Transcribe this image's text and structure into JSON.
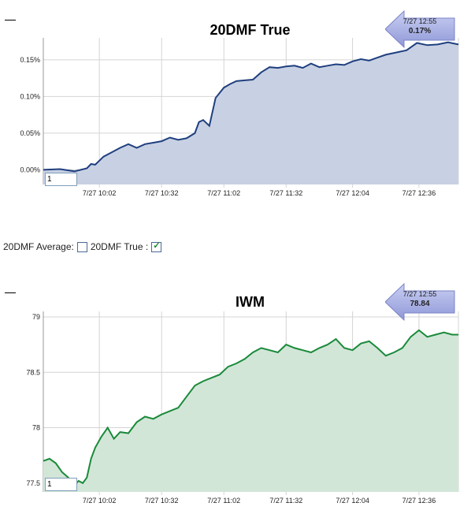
{
  "charts": [
    {
      "id": "dmf",
      "title": "20DMF True",
      "tooltip": {
        "date": "7/27 12:55",
        "value": "0.17%"
      },
      "range_input": "1",
      "colors": {
        "line": "#1f3f7f",
        "fill": "#c8d1e3"
      },
      "y_ticks": [
        "0.00%",
        "0.05%",
        "0.10%",
        "0.15%"
      ],
      "x_ticks": [
        "7/27 10:02",
        "7/27 10:32",
        "7/27 11:02",
        "7/27 11:32",
        "7/27 12:04",
        "7/27 12:36"
      ]
    },
    {
      "id": "iwm",
      "title": "IWM",
      "tooltip": {
        "date": "7/27 12:55",
        "value": "78.84"
      },
      "range_input": "1",
      "colors": {
        "line": "#1a8a3a",
        "fill": "#d2e6d8"
      },
      "y_ticks": [
        "77.5",
        "78",
        "78.5",
        "79"
      ],
      "x_ticks": [
        "7/27 10:02",
        "7/27 10:32",
        "7/27 11:02",
        "7/27 11:32",
        "7/27 12:04",
        "7/27 12:36"
      ]
    }
  ],
  "legend": {
    "average_label": "20DMF Average:",
    "average_checked": false,
    "true_label": "20DMF True :",
    "true_checked": true
  },
  "chart_data": [
    {
      "type": "area",
      "title": "20DMF True",
      "y_unit": "%",
      "ylim": [
        -0.02,
        0.18
      ],
      "y_ticks": [
        0.0,
        0.05,
        0.1,
        0.15
      ],
      "x_ticks": [
        "7/27 10:02",
        "7/27 10:32",
        "7/27 11:02",
        "7/27 11:32",
        "7/27 12:04",
        "7/27 12:36"
      ],
      "x_tick_minutes": [
        602,
        632,
        662,
        692,
        724,
        756
      ],
      "x_range_minutes": [
        575,
        775
      ],
      "grid": true,
      "x": [
        575,
        583,
        590,
        596,
        598,
        600,
        604,
        608,
        612,
        616,
        620,
        624,
        628,
        632,
        636,
        640,
        644,
        648,
        650,
        652,
        655,
        658,
        662,
        665,
        668,
        672,
        676,
        680,
        684,
        688,
        692,
        696,
        700,
        704,
        708,
        712,
        716,
        720,
        724,
        728,
        732,
        736,
        740,
        745,
        750,
        755,
        760,
        765,
        770,
        775
      ],
      "y": [
        0.0,
        0.001,
        -0.002,
        0.002,
        0.008,
        0.007,
        0.018,
        0.024,
        0.03,
        0.035,
        0.03,
        0.035,
        0.037,
        0.039,
        0.044,
        0.041,
        0.043,
        0.05,
        0.065,
        0.068,
        0.06,
        0.098,
        0.112,
        0.117,
        0.121,
        0.122,
        0.123,
        0.133,
        0.14,
        0.139,
        0.141,
        0.142,
        0.139,
        0.145,
        0.14,
        0.142,
        0.144,
        0.143,
        0.148,
        0.151,
        0.149,
        0.153,
        0.157,
        0.16,
        0.163,
        0.173,
        0.17,
        0.171,
        0.174,
        0.171
      ]
    },
    {
      "type": "area",
      "title": "IWM",
      "ylim": [
        77.42,
        79.05
      ],
      "y_ticks": [
        77.5,
        78,
        78.5,
        79
      ],
      "x_ticks": [
        "7/27 10:02",
        "7/27 10:32",
        "7/27 11:02",
        "7/27 11:32",
        "7/27 12:04",
        "7/27 12:36"
      ],
      "x_tick_minutes": [
        602,
        632,
        662,
        692,
        724,
        756
      ],
      "x_range_minutes": [
        575,
        775
      ],
      "grid": true,
      "x": [
        575,
        578,
        581,
        584,
        587,
        590,
        592,
        594,
        596,
        598,
        600,
        603,
        606,
        609,
        612,
        616,
        620,
        624,
        628,
        632,
        636,
        640,
        644,
        648,
        652,
        656,
        660,
        664,
        668,
        672,
        676,
        680,
        684,
        688,
        692,
        696,
        700,
        704,
        708,
        712,
        716,
        720,
        724,
        728,
        732,
        736,
        740,
        744,
        748,
        752,
        756,
        760,
        764,
        768,
        772,
        775
      ],
      "y": [
        77.7,
        77.72,
        77.68,
        77.6,
        77.55,
        77.48,
        77.52,
        77.5,
        77.55,
        77.72,
        77.82,
        77.92,
        78.0,
        77.9,
        77.96,
        77.95,
        78.05,
        78.1,
        78.08,
        78.12,
        78.15,
        78.18,
        78.28,
        78.38,
        78.42,
        78.45,
        78.48,
        78.55,
        78.58,
        78.62,
        78.68,
        78.72,
        78.7,
        78.68,
        78.75,
        78.72,
        78.7,
        78.68,
        78.72,
        78.75,
        78.8,
        78.72,
        78.7,
        78.76,
        78.78,
        78.72,
        78.65,
        78.68,
        78.72,
        78.82,
        78.88,
        78.82,
        78.84,
        78.86,
        78.84,
        78.84
      ]
    }
  ]
}
